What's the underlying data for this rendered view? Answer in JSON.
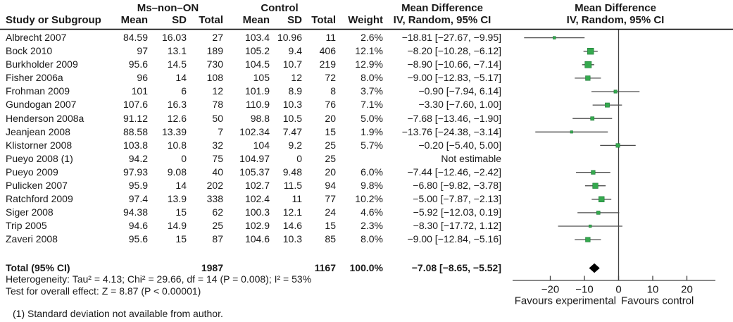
{
  "table": {
    "group1_label": "Ms–non–ON",
    "group2_label": "Control",
    "md_header": "Mean Difference",
    "iv_header": "IV, Random, 95% CI",
    "col_headers": {
      "study": "Study or Subgroup",
      "mean": "Mean",
      "sd": "SD",
      "total": "Total",
      "weight": "Weight"
    },
    "studies": [
      {
        "name": "Albrecht 2007",
        "mean1": "84.59",
        "sd1": "16.03",
        "total1": "27",
        "mean2": "103.4",
        "sd2": "10.96",
        "total2": "11",
        "weight": "2.6%",
        "ci": "−18.81 [−27.67, −9.95]",
        "md": -18.81,
        "lo": -27.67,
        "hi": -9.95,
        "w": 2.6,
        "estimable": true
      },
      {
        "name": "Bock 2010",
        "mean1": "97",
        "sd1": "13.1",
        "total1": "189",
        "mean2": "105.2",
        "sd2": "9.4",
        "total2": "406",
        "weight": "12.1%",
        "ci": "−8.20 [−10.28, −6.12]",
        "md": -8.2,
        "lo": -10.28,
        "hi": -6.12,
        "w": 12.1,
        "estimable": true
      },
      {
        "name": "Burkholder 2009",
        "mean1": "95.6",
        "sd1": "14.5",
        "total1": "730",
        "mean2": "104.5",
        "sd2": "10.7",
        "total2": "219",
        "weight": "12.9%",
        "ci": "−8.90 [−10.66, −7.14]",
        "md": -8.9,
        "lo": -10.66,
        "hi": -7.14,
        "w": 12.9,
        "estimable": true
      },
      {
        "name": "Fisher 2006a",
        "mean1": "96",
        "sd1": "14",
        "total1": "108",
        "mean2": "105",
        "sd2": "12",
        "total2": "72",
        "weight": "8.0%",
        "ci": "−9.00 [−12.83, −5.17]",
        "md": -9.0,
        "lo": -12.83,
        "hi": -5.17,
        "w": 8.0,
        "estimable": true
      },
      {
        "name": "Frohman 2009",
        "mean1": "101",
        "sd1": "6",
        "total1": "12",
        "mean2": "101.9",
        "sd2": "8.9",
        "total2": "8",
        "weight": "3.7%",
        "ci": "−0.90 [−7.94, 6.14]",
        "md": -0.9,
        "lo": -7.94,
        "hi": 6.14,
        "w": 3.7,
        "estimable": true
      },
      {
        "name": "Gundogan 2007",
        "mean1": "107.6",
        "sd1": "16.3",
        "total1": "78",
        "mean2": "110.9",
        "sd2": "10.3",
        "total2": "76",
        "weight": "7.1%",
        "ci": "−3.30 [−7.60, 1.00]",
        "md": -3.3,
        "lo": -7.6,
        "hi": 1.0,
        "w": 7.1,
        "estimable": true
      },
      {
        "name": "Henderson 2008a",
        "mean1": "91.12",
        "sd1": "12.6",
        "total1": "50",
        "mean2": "98.8",
        "sd2": "10.5",
        "total2": "20",
        "weight": "5.0%",
        "ci": "−7.68 [−13.46, −1.90]",
        "md": -7.68,
        "lo": -13.46,
        "hi": -1.9,
        "w": 5.0,
        "estimable": true
      },
      {
        "name": "Jeanjean 2008",
        "mean1": "88.58",
        "sd1": "13.39",
        "total1": "7",
        "mean2": "102.34",
        "sd2": "7.47",
        "total2": "15",
        "weight": "1.9%",
        "ci": "−13.76 [−24.38, −3.14]",
        "md": -13.76,
        "lo": -24.38,
        "hi": -3.14,
        "w": 1.9,
        "estimable": true
      },
      {
        "name": "Klistorner 2008",
        "mean1": "103.8",
        "sd1": "10.8",
        "total1": "32",
        "mean2": "104",
        "sd2": "9.2",
        "total2": "25",
        "weight": "5.7%",
        "ci": "−0.20 [−5.40, 5.00]",
        "md": -0.2,
        "lo": -5.4,
        "hi": 5.0,
        "w": 5.7,
        "estimable": true
      },
      {
        "name": "Pueyo 2008 (1)",
        "mean1": "94.2",
        "sd1": "0",
        "total1": "75",
        "mean2": "104.97",
        "sd2": "0",
        "total2": "25",
        "weight": "",
        "ci": "Not estimable",
        "md": null,
        "lo": null,
        "hi": null,
        "w": null,
        "estimable": false
      },
      {
        "name": "Pueyo 2009",
        "mean1": "97.93",
        "sd1": "9.08",
        "total1": "40",
        "mean2": "105.37",
        "sd2": "9.48",
        "total2": "20",
        "weight": "6.0%",
        "ci": "−7.44 [−12.46, −2.42]",
        "md": -7.44,
        "lo": -12.46,
        "hi": -2.42,
        "w": 6.0,
        "estimable": true
      },
      {
        "name": "Pulicken 2007",
        "mean1": "95.9",
        "sd1": "14",
        "total1": "202",
        "mean2": "102.7",
        "sd2": "11.5",
        "total2": "94",
        "weight": "9.8%",
        "ci": "−6.80 [−9.82, −3.78]",
        "md": -6.8,
        "lo": -9.82,
        "hi": -3.78,
        "w": 9.8,
        "estimable": true
      },
      {
        "name": "Ratchford 2009",
        "mean1": "97.4",
        "sd1": "13.9",
        "total1": "338",
        "mean2": "102.4",
        "sd2": "11",
        "total2": "77",
        "weight": "10.2%",
        "ci": "−5.00 [−7.87, −2.13]",
        "md": -5.0,
        "lo": -7.87,
        "hi": -2.13,
        "w": 10.2,
        "estimable": true
      },
      {
        "name": "Siger 2008",
        "mean1": "94.38",
        "sd1": "15",
        "total1": "62",
        "mean2": "100.3",
        "sd2": "12.1",
        "total2": "24",
        "weight": "4.6%",
        "ci": "−5.92 [−12.03, 0.19]",
        "md": -5.92,
        "lo": -12.03,
        "hi": 0.19,
        "w": 4.6,
        "estimable": true
      },
      {
        "name": "Trip 2005",
        "mean1": "94.6",
        "sd1": "14.9",
        "total1": "25",
        "mean2": "102.9",
        "sd2": "14.6",
        "total2": "15",
        "weight": "2.3%",
        "ci": "−8.30 [−17.72, 1.12]",
        "md": -8.3,
        "lo": -17.72,
        "hi": 1.12,
        "w": 2.3,
        "estimable": true
      },
      {
        "name": "Zaveri 2008",
        "mean1": "95.6",
        "sd1": "15",
        "total1": "87",
        "mean2": "104.6",
        "sd2": "10.3",
        "total2": "85",
        "weight": "8.0%",
        "ci": "−9.00 [−12.84, −5.16]",
        "md": -9.0,
        "lo": -12.84,
        "hi": -5.16,
        "w": 8.0,
        "estimable": true
      }
    ],
    "total": {
      "label": "Total (95% CI)",
      "total1": "1987",
      "total2": "1167",
      "weight": "100.0%",
      "ci": "−7.08 [−8.65, −5.52]",
      "md": -7.08,
      "lo": -8.65,
      "hi": -5.52
    }
  },
  "stats": {
    "heterogeneity": "Heterogeneity: Tau² = 4.13; Chi² = 29.66, df = 14 (P = 0.008); I² = 53%",
    "overall_effect": "Test for overall effect: Z = 8.87 (P < 0.00001)",
    "footnote": "(1) Standard deviation not available from author."
  },
  "plot": {
    "ticks": [
      "−20",
      "−10",
      "0",
      "10",
      "20"
    ],
    "tick_values": [
      -20,
      -10,
      0,
      10,
      20
    ],
    "favours_left": "Favours experimental",
    "favours_right": "Favours control",
    "marker_color": "#35a94e",
    "marker_edge_color": "#1e7a38",
    "line_color": "#4d4d4d",
    "axis_color": "#404040",
    "diamond_color": "#000000",
    "rule_color": "#000000"
  },
  "chart_data": {
    "type": "scatter",
    "title": "Mean Difference, IV, Random, 95% CI (forest plot)",
    "xlabel": "Favours experimental / Favours control",
    "xlim": [
      -31,
      28.5
    ],
    "x_ticks": [
      -20,
      -10,
      0,
      10,
      20
    ],
    "grid": false,
    "legend_position": "none",
    "categories": [
      "Albrecht 2007",
      "Bock 2010",
      "Burkholder 2009",
      "Fisher 2006a",
      "Frohman 2009",
      "Gundogan 2007",
      "Henderson 2008a",
      "Jeanjean 2008",
      "Klistorner 2008",
      "Pueyo 2008 (1)",
      "Pueyo 2009",
      "Pulicken 2007",
      "Ratchford 2009",
      "Siger 2008",
      "Trip 2005",
      "Zaveri 2008"
    ],
    "series": [
      {
        "name": "Mean Difference",
        "values": [
          -18.81,
          -8.2,
          -8.9,
          -9.0,
          -0.9,
          -3.3,
          -7.68,
          -13.76,
          -0.2,
          null,
          -7.44,
          -6.8,
          -5.0,
          -5.92,
          -8.3,
          -9.0
        ]
      },
      {
        "name": "CI lower",
        "values": [
          -27.67,
          -10.28,
          -10.66,
          -12.83,
          -7.94,
          -7.6,
          -13.46,
          -24.38,
          -5.4,
          null,
          -12.46,
          -9.82,
          -7.87,
          -12.03,
          -17.72,
          -12.84
        ]
      },
      {
        "name": "CI upper",
        "values": [
          -9.95,
          -6.12,
          -7.14,
          -5.17,
          6.14,
          1.0,
          -1.9,
          -3.14,
          5.0,
          null,
          -2.42,
          -3.78,
          -2.13,
          0.19,
          1.12,
          -5.16
        ]
      },
      {
        "name": "Weight %",
        "values": [
          2.6,
          12.1,
          12.9,
          8.0,
          3.7,
          7.1,
          5.0,
          1.9,
          5.7,
          null,
          6.0,
          9.8,
          10.2,
          4.6,
          2.3,
          8.0
        ]
      }
    ],
    "summary": {
      "label": "Total (95% CI)",
      "value": -7.08,
      "ci_low": -8.65,
      "ci_high": -5.52,
      "weight_pct": 100.0
    }
  }
}
